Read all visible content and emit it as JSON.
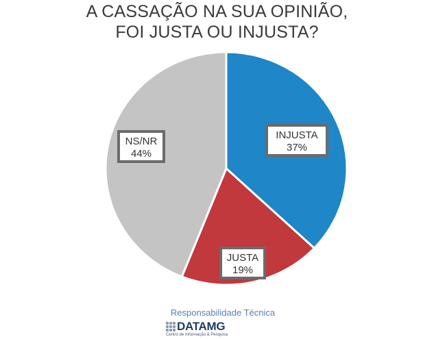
{
  "title": {
    "line1": "A CASSAÇÃO NA SUA OPINIÃO,",
    "line2": "FOI JUSTA OU INJUSTA?"
  },
  "chart_data": {
    "type": "pie",
    "title": "A CASSAÇÃO NA SUA OPINIÃO, FOI JUSTA OU INJUSTA?",
    "categories": [
      "INJUSTA",
      "JUSTA",
      "NS/NR"
    ],
    "values": [
      37,
      19,
      44
    ],
    "labels": [
      "37%",
      "19%",
      "44%"
    ],
    "colors": [
      "#1f86c8",
      "#c1383d",
      "#c4c4c4"
    ],
    "start": "12 o'clock",
    "direction": "clockwise",
    "legend": "none"
  },
  "footer": {
    "responsibility": "Responsabilidade Técnica",
    "logo_name": "DATAMG",
    "logo_tagline": "Centro de Informação & Pesquisa"
  }
}
